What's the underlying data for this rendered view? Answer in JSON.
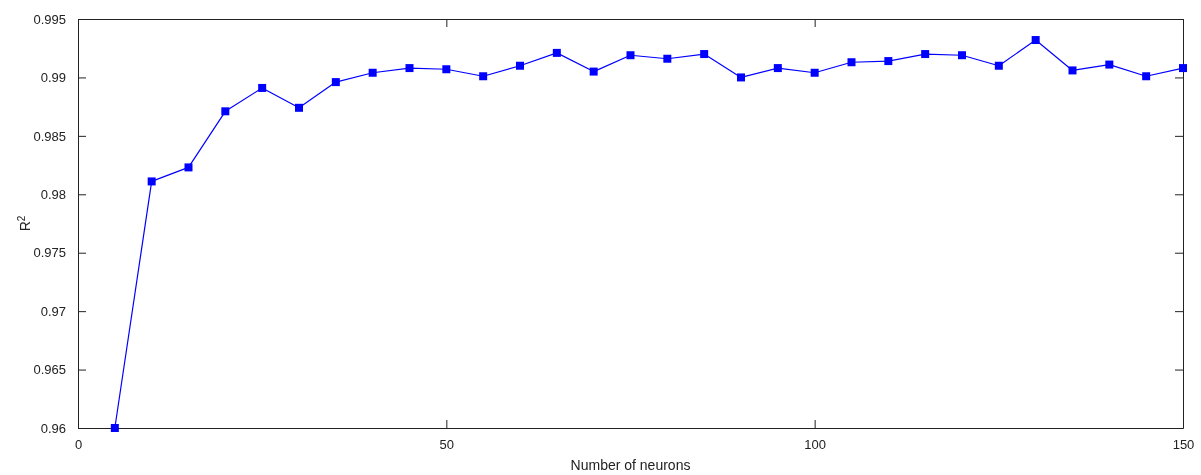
{
  "chart_data": {
    "type": "line",
    "xlabel": "Number of neurons",
    "ylabel": "R$^{2}$",
    "x": [
      5,
      10,
      15,
      20,
      25,
      30,
      35,
      40,
      45,
      50,
      55,
      60,
      65,
      70,
      75,
      80,
      85,
      90,
      95,
      100,
      105,
      110,
      115,
      120,
      125,
      130,
      135,
      140,
      145,
      150
    ],
    "series": [
      {
        "color": "#0000ff",
        "values": [
          0.96,
          0.9811,
          0.9823,
          0.9871,
          0.9891,
          0.9874,
          0.9896,
          0.9904,
          0.9908,
          0.9907,
          0.9901,
          0.991,
          0.9921,
          0.9905,
          0.9919,
          0.9916,
          0.992,
          0.99,
          0.9908,
          0.9904,
          0.9913,
          0.9914,
          0.992,
          0.9919,
          0.991,
          0.9932,
          0.9906,
          0.9911,
          0.9901,
          0.9908
        ]
      }
    ],
    "xlim": [
      0,
      150
    ],
    "ylim": [
      0.96,
      0.995
    ],
    "xticks": [
      0,
      50,
      100,
      150
    ],
    "yticks": [
      0.96,
      0.965,
      0.97,
      0.975,
      0.98,
      0.985,
      0.99,
      0.995
    ],
    "marker": "square",
    "line_style": "solid",
    "grid": false
  }
}
